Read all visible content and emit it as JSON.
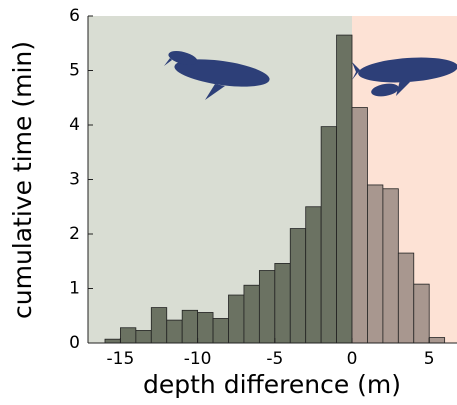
{
  "chart_data": {
    "type": "histogram",
    "x_label": "depth difference (m)",
    "y_label": "cumulative time (min)",
    "bins": [
      -16,
      -15,
      -14,
      -13,
      -12,
      -11,
      -10,
      -9,
      -8,
      -7,
      -6,
      -5,
      -4,
      -3,
      -2,
      -1,
      0,
      1,
      2,
      3,
      4,
      5,
      6
    ],
    "values": [
      0.07,
      0.28,
      0.23,
      0.65,
      0.42,
      0.6,
      0.56,
      0.45,
      0.88,
      1.06,
      1.33,
      1.46,
      2.1,
      2.5,
      3.97,
      5.65,
      4.32,
      2.9,
      2.83,
      1.65,
      1.08,
      0.1
    ],
    "bar_colors": [
      "#6b7262",
      "#6b7262",
      "#6b7262",
      "#6b7262",
      "#6b7262",
      "#6b7262",
      "#6b7262",
      "#6b7262",
      "#6b7262",
      "#6b7262",
      "#6b7262",
      "#6b7262",
      "#6b7262",
      "#6b7262",
      "#6b7262",
      "#6b7262",
      "#a8978f",
      "#a8978f",
      "#a8978f",
      "#a8978f",
      "#a8978f",
      "#a8978f"
    ],
    "shaded_regions": [
      {
        "xlim": [
          -17.1,
          0
        ],
        "color": "#d9ddd3"
      },
      {
        "xlim": [
          0,
          6.8
        ],
        "color": "#fde2d5"
      }
    ],
    "xlim": [
      -17.1,
      6.8
    ],
    "ylim": [
      0,
      6
    ],
    "xticks": [
      -15,
      -10,
      -5,
      0,
      5
    ],
    "yticks": [
      0,
      1,
      2,
      3,
      4,
      5,
      6
    ]
  }
}
